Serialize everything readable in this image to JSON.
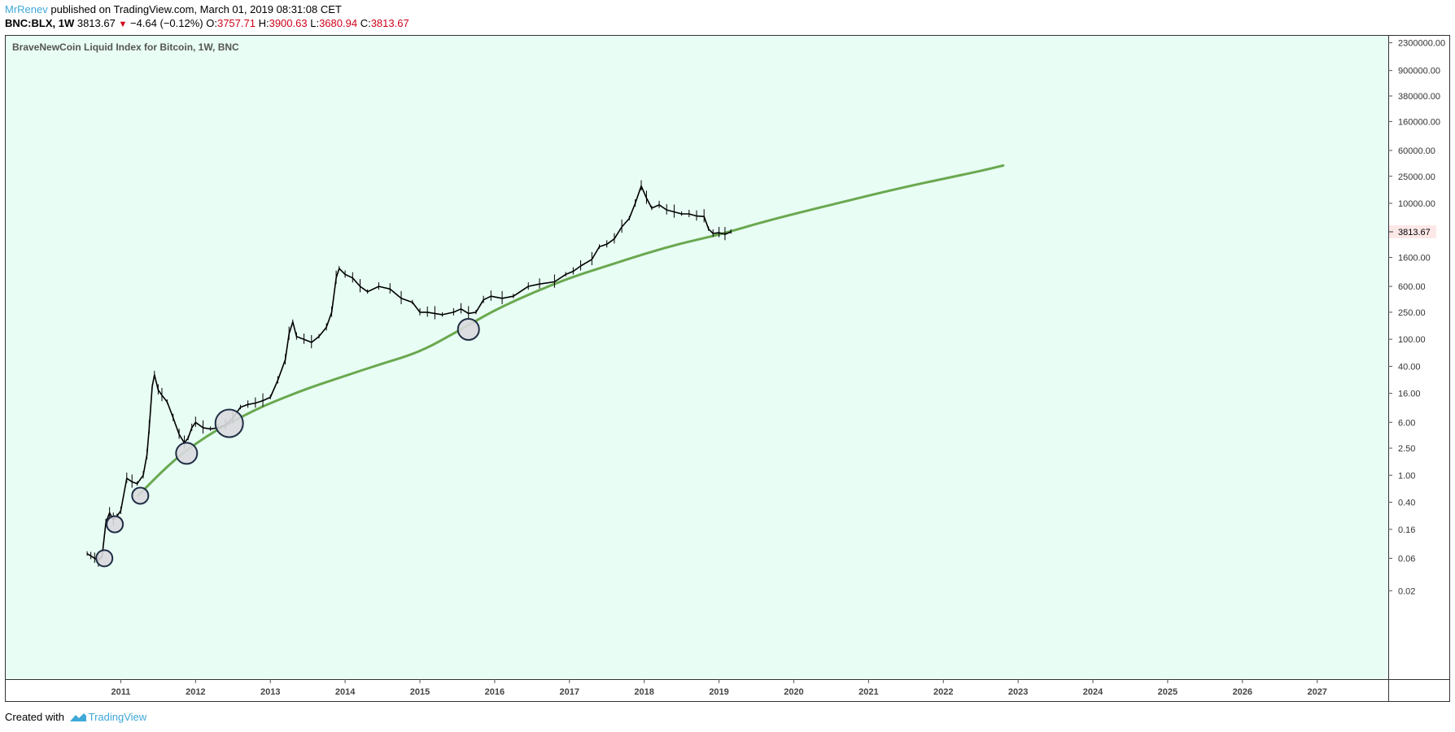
{
  "header": {
    "author": "MrRenev",
    "published_text": " published on TradingView.com, March 01, 2019 08:31:08 CET",
    "symbol": "BNC:BLX, 1W",
    "last_price": "3813.67",
    "change": "−4.64 (−0.12%)",
    "open_label": "O:",
    "open_value": "3757.71",
    "high_label": "H:",
    "high_value": "3900.63",
    "low_label": "L:",
    "low_value": "3680.94",
    "close_label": "C:",
    "close_value": "3813.67"
  },
  "footer": {
    "created_with": "Created with",
    "brand": "TradingView"
  },
  "colors": {
    "background": "#e8fdf4",
    "curve": "#6aa84f",
    "price": "#000000",
    "circle_fill": "#d9d9de",
    "circle_stroke": "#1f2d44",
    "accent": "#3ea8d8",
    "down": "#d0021b"
  },
  "chart_data": {
    "type": "line",
    "scale": "log",
    "title": "BraveNewCoin Liquid Index for Bitcoin, 1W, BNC",
    "price_tag": "3813.67",
    "ylim": [
      0.001,
      3000000
    ],
    "xlim": [
      2009.45,
      2027.95
    ],
    "x_ticks": [
      "2011",
      "2012",
      "2013",
      "2014",
      "2015",
      "2016",
      "2017",
      "2018",
      "2019",
      "2020",
      "2021",
      "2022",
      "2023",
      "2024",
      "2025",
      "2026",
      "2027"
    ],
    "y_ticks": [
      {
        "v": 2300000,
        "label": "2300000.00"
      },
      {
        "v": 900000,
        "label": "900000.00"
      },
      {
        "v": 380000,
        "label": "380000.00"
      },
      {
        "v": 160000,
        "label": "160000.00"
      },
      {
        "v": 60000,
        "label": "60000.00"
      },
      {
        "v": 25000,
        "label": "25000.00"
      },
      {
        "v": 10000,
        "label": "10000.00"
      },
      {
        "v": 1600,
        "label": "1600.00"
      },
      {
        "v": 600,
        "label": "600.00"
      },
      {
        "v": 250,
        "label": "250.00"
      },
      {
        "v": 100,
        "label": "100.00"
      },
      {
        "v": 40,
        "label": "40.00"
      },
      {
        "v": 16,
        "label": "16.00"
      },
      {
        "v": 6,
        "label": "6.00"
      },
      {
        "v": 2.5,
        "label": "2.50"
      },
      {
        "v": 1,
        "label": "1.00"
      },
      {
        "v": 0.4,
        "label": "0.40"
      },
      {
        "v": 0.16,
        "label": "0.16"
      },
      {
        "v": 0.06,
        "label": "0.06"
      },
      {
        "v": 0.02,
        "label": "0.02"
      }
    ],
    "series": [
      {
        "type": "price",
        "points": [
          [
            2010.55,
            0.07
          ],
          [
            2010.6,
            0.065
          ],
          [
            2010.65,
            0.06
          ],
          [
            2010.7,
            0.055
          ],
          [
            2010.75,
            0.065
          ],
          [
            2010.8,
            0.2
          ],
          [
            2010.85,
            0.28
          ],
          [
            2010.9,
            0.22
          ],
          [
            2010.95,
            0.25
          ],
          [
            2011.0,
            0.3
          ],
          [
            2011.08,
            0.9
          ],
          [
            2011.15,
            0.8
          ],
          [
            2011.22,
            0.75
          ],
          [
            2011.3,
            1.0
          ],
          [
            2011.35,
            2.0
          ],
          [
            2011.38,
            5.0
          ],
          [
            2011.42,
            20.0
          ],
          [
            2011.45,
            30.0
          ],
          [
            2011.5,
            18.0
          ],
          [
            2011.55,
            15.0
          ],
          [
            2011.62,
            12.0
          ],
          [
            2011.7,
            7.0
          ],
          [
            2011.78,
            4.0
          ],
          [
            2011.85,
            3.0
          ],
          [
            2011.9,
            3.5
          ],
          [
            2011.95,
            5.0
          ],
          [
            2012.0,
            6.0
          ],
          [
            2012.1,
            5.0
          ],
          [
            2012.2,
            4.8
          ],
          [
            2012.3,
            5.0
          ],
          [
            2012.4,
            5.5
          ],
          [
            2012.5,
            7.0
          ],
          [
            2012.6,
            10.0
          ],
          [
            2012.7,
            11.0
          ],
          [
            2012.8,
            11.5
          ],
          [
            2012.9,
            12.5
          ],
          [
            2013.0,
            14.0
          ],
          [
            2013.1,
            25.0
          ],
          [
            2013.2,
            50.0
          ],
          [
            2013.25,
            120.0
          ],
          [
            2013.3,
            180.0
          ],
          [
            2013.35,
            110.0
          ],
          [
            2013.45,
            100.0
          ],
          [
            2013.55,
            90.0
          ],
          [
            2013.65,
            110.0
          ],
          [
            2013.75,
            150.0
          ],
          [
            2013.82,
            250.0
          ],
          [
            2013.88,
            800.0
          ],
          [
            2013.92,
            1100.0
          ],
          [
            2014.0,
            900.0
          ],
          [
            2014.1,
            800.0
          ],
          [
            2014.2,
            600.0
          ],
          [
            2014.3,
            500.0
          ],
          [
            2014.45,
            600.0
          ],
          [
            2014.6,
            550.0
          ],
          [
            2014.75,
            400.0
          ],
          [
            2014.9,
            350.0
          ],
          [
            2015.0,
            250.0
          ],
          [
            2015.1,
            250.0
          ],
          [
            2015.2,
            240.0
          ],
          [
            2015.3,
            230.0
          ],
          [
            2015.45,
            250.0
          ],
          [
            2015.55,
            280.0
          ],
          [
            2015.65,
            240.0
          ],
          [
            2015.75,
            250.0
          ],
          [
            2015.85,
            380.0
          ],
          [
            2015.95,
            430.0
          ],
          [
            2016.1,
            400.0
          ],
          [
            2016.25,
            430.0
          ],
          [
            2016.45,
            600.0
          ],
          [
            2016.6,
            650.0
          ],
          [
            2016.8,
            700.0
          ],
          [
            2016.95,
            900.0
          ],
          [
            2017.05,
            1000.0
          ],
          [
            2017.15,
            1200.0
          ],
          [
            2017.3,
            1500.0
          ],
          [
            2017.4,
            2300.0
          ],
          [
            2017.5,
            2500.0
          ],
          [
            2017.6,
            3000.0
          ],
          [
            2017.7,
            4500.0
          ],
          [
            2017.8,
            6000.0
          ],
          [
            2017.88,
            10000.0
          ],
          [
            2017.96,
            18000.0
          ],
          [
            2018.03,
            12000.0
          ],
          [
            2018.1,
            8500.0
          ],
          [
            2018.2,
            9500.0
          ],
          [
            2018.3,
            8000.0
          ],
          [
            2018.4,
            7500.0
          ],
          [
            2018.5,
            7000.0
          ],
          [
            2018.6,
            7000.0
          ],
          [
            2018.7,
            6500.0
          ],
          [
            2018.8,
            6400.0
          ],
          [
            2018.86,
            4200.0
          ],
          [
            2018.92,
            3600.0
          ],
          [
            2019.0,
            3700.0
          ],
          [
            2019.08,
            3500.0
          ],
          [
            2019.16,
            3813.67
          ]
        ]
      },
      {
        "type": "regression-curve",
        "points": [
          [
            2011.23,
            0.5
          ],
          [
            2011.5,
            1.0
          ],
          [
            2011.75,
            1.8
          ],
          [
            2012.0,
            2.9
          ],
          [
            2012.25,
            4.4
          ],
          [
            2012.5,
            6.2
          ],
          [
            2012.75,
            8.6
          ],
          [
            2013.0,
            11.5
          ],
          [
            2013.5,
            19.0
          ],
          [
            2014.0,
            29.0
          ],
          [
            2014.5,
            44.0
          ],
          [
            2015.0,
            65.0
          ],
          [
            2015.5,
            130.0
          ],
          [
            2016.0,
            270.0
          ],
          [
            2016.5,
            480.0
          ],
          [
            2017.0,
            800.0
          ],
          [
            2017.5,
            1200.0
          ],
          [
            2018.0,
            1800.0
          ],
          [
            2018.5,
            2600.0
          ],
          [
            2019.0,
            3450.0
          ],
          [
            2019.5,
            5000.0
          ],
          [
            2020.0,
            7000.0
          ],
          [
            2020.5,
            9500.0
          ],
          [
            2021.0,
            13000.0
          ],
          [
            2021.5,
            17500.0
          ],
          [
            2022.0,
            23000.0
          ],
          [
            2022.5,
            30000.0
          ],
          [
            2022.8,
            36000.0
          ]
        ]
      },
      {
        "type": "touch-circles",
        "points": [
          {
            "x": 2010.78,
            "y": 0.06,
            "size": "small"
          },
          {
            "x": 2010.92,
            "y": 0.19,
            "size": "small"
          },
          {
            "x": 2011.26,
            "y": 0.5,
            "size": "small"
          },
          {
            "x": 2011.88,
            "y": 2.1,
            "size": "medium"
          },
          {
            "x": 2012.45,
            "y": 5.8,
            "size": "large"
          },
          {
            "x": 2015.65,
            "y": 140.0,
            "size": "medium"
          }
        ]
      }
    ]
  }
}
